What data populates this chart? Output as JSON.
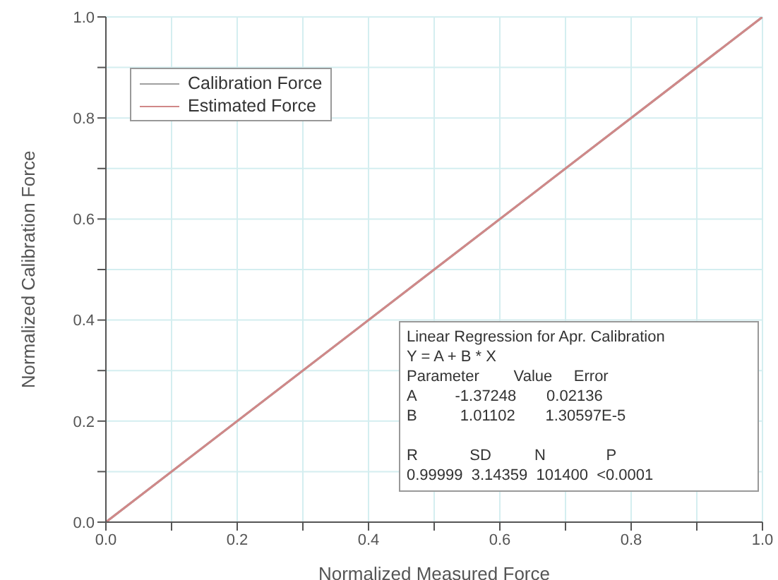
{
  "chart_data": {
    "type": "line",
    "xlabel": "Normalized Measured Force",
    "ylabel": "Normalized Calibration Force",
    "x": [
      0,
      0.5,
      1
    ],
    "series": [
      {
        "name": "Calibration Force",
        "color": "#a0a0a0",
        "values": [
          0,
          0.5,
          1
        ]
      },
      {
        "name": "Estimated Force",
        "color": "#d08888",
        "values": [
          0,
          0.5,
          1
        ]
      }
    ],
    "xlim": [
      0,
      1
    ],
    "ylim": [
      0,
      1
    ],
    "xticks": [
      {
        "value": 0,
        "label": "0.0"
      },
      {
        "value": 0.1,
        "label": null
      },
      0.2,
      {
        "value": 0.3,
        "label": null
      },
      0.4,
      {
        "value": 0.5,
        "label": null
      },
      0.6,
      {
        "value": 0.7,
        "label": null
      },
      0.8,
      {
        "value": 0.9,
        "label": null
      },
      {
        "value": 1,
        "label": "1.0"
      }
    ],
    "yticks": [
      {
        "value": 0,
        "label": "0.0"
      },
      {
        "value": 0.1,
        "label": null
      },
      0.2,
      {
        "value": 0.3,
        "label": null
      },
      0.4,
      {
        "value": 0.5,
        "label": null
      },
      0.6,
      {
        "value": 0.7,
        "label": null
      },
      0.8,
      {
        "value": 0.9,
        "label": null
      },
      {
        "value": 1,
        "label": "1.0"
      }
    ],
    "grid": true,
    "legend": "top left",
    "marker": "none",
    "line_style": "solid",
    "annotations": [
      "Linear Regression for Apr. Calibration",
      "Y = A + B * X",
      "Parameter        Value     Error",
      "A         -1.37248       0.02136",
      "B          1.01102       1.30597E-5",
      "R            SD          N              P",
      "0.99999  3.14359  101400  <0.0001"
    ]
  }
}
